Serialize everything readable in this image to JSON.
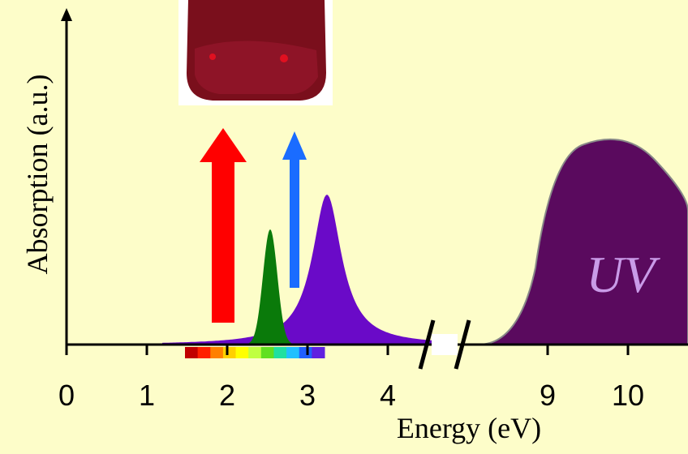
{
  "axis": {
    "x_label": "Energy (eV)",
    "y_label": "Absorption (a.u.)",
    "ticks": [
      0,
      1,
      2,
      3,
      4,
      9,
      10
    ]
  },
  "uv_label": "UV"
}
